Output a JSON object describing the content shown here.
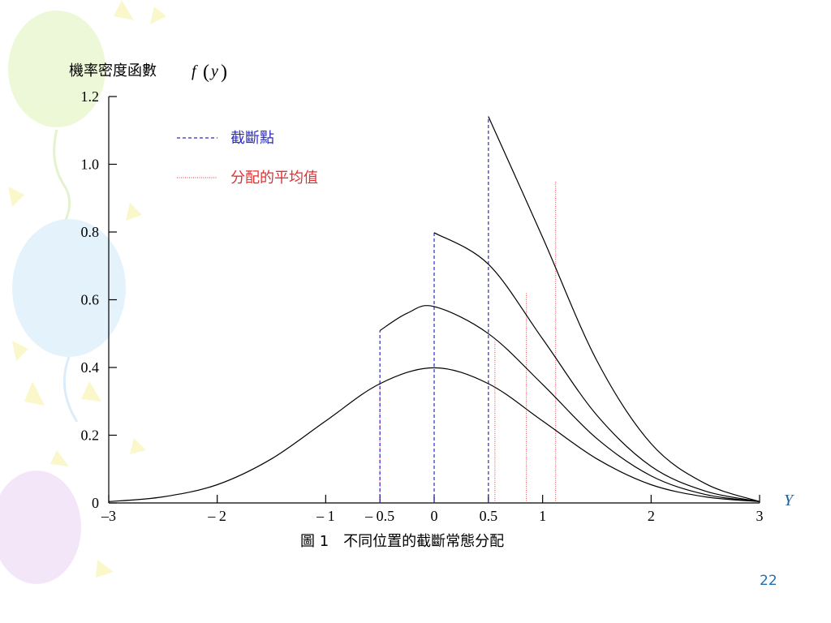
{
  "slide": {
    "page_number": "22",
    "caption": "圖 1　不同位置的截斷常態分配"
  },
  "chart_data": {
    "type": "line",
    "ylabel": "機率密度函數",
    "ylabel_formula": {
      "f": "f",
      "y": "y"
    },
    "xlabel": "Y",
    "xlim": [
      -3,
      3
    ],
    "ylim": [
      0,
      1.2
    ],
    "x_ticks": [
      {
        "value": -3,
        "label": "–3"
      },
      {
        "value": -2,
        "label": "– 2"
      },
      {
        "value": -1,
        "label": "– 1"
      },
      {
        "value": -0.5,
        "label": "– 0.5"
      },
      {
        "value": 0,
        "label": "0"
      },
      {
        "value": 0.5,
        "label": "0.5"
      },
      {
        "value": 1,
        "label": "1"
      },
      {
        "value": 2,
        "label": "2"
      },
      {
        "value": 3,
        "label": "3"
      }
    ],
    "y_ticks": [
      {
        "value": 0,
        "label": "0"
      },
      {
        "value": 0.2,
        "label": "0.2"
      },
      {
        "value": 0.4,
        "label": "0.4"
      },
      {
        "value": 0.6,
        "label": "0.6"
      },
      {
        "value": 0.8,
        "label": "0.8"
      },
      {
        "value": 1.0,
        "label": "1.0"
      },
      {
        "value": 1.2,
        "label": "1.2"
      }
    ],
    "legend": {
      "position": "top-left",
      "entries": [
        {
          "label": "截斷點",
          "color": "#2b2bc8",
          "style": "dashed"
        },
        {
          "label": "分配的平均值",
          "color": "#e03030",
          "style": "dotted"
        }
      ]
    },
    "series": [
      {
        "truncation": -3,
        "color": "#000000",
        "x": [
          -3,
          -2.5,
          -2,
          -1.5,
          -1,
          -0.5,
          0,
          0.5,
          1,
          1.5,
          2,
          2.5,
          3
        ],
        "y": [
          0.004,
          0.018,
          0.054,
          0.13,
          0.242,
          0.352,
          0.399,
          0.352,
          0.242,
          0.13,
          0.054,
          0.018,
          0.004
        ]
      },
      {
        "truncation": -0.5,
        "color": "#000000",
        "x": [
          -0.5,
          -0.25,
          0,
          0.5,
          1,
          1.5,
          2,
          2.5,
          3
        ],
        "y": [
          0.509,
          0.56,
          0.58,
          0.5,
          0.35,
          0.19,
          0.08,
          0.025,
          0.004
        ]
      },
      {
        "truncation": 0,
        "color": "#000000",
        "x": [
          0,
          0.5,
          1,
          1.5,
          2,
          2.5,
          3
        ],
        "y": [
          0.798,
          0.705,
          0.484,
          0.259,
          0.108,
          0.035,
          0.004
        ]
      },
      {
        "truncation": 0.5,
        "color": "#000000",
        "x": [
          0.5,
          1,
          1.5,
          2,
          2.5,
          3
        ],
        "y": [
          1.141,
          0.784,
          0.42,
          0.175,
          0.057,
          0.004
        ]
      }
    ],
    "truncation_lines": [
      {
        "x": -0.5,
        "y_top": 0.509
      },
      {
        "x": 0,
        "y_top": 0.798
      },
      {
        "x": 0.5,
        "y_top": 1.141
      }
    ],
    "mean_lines": [
      {
        "x": -0.5,
        "y_top": 0.35
      },
      {
        "x": 0.56,
        "y_top": 0.48
      },
      {
        "x": 0.85,
        "y_top": 0.62
      },
      {
        "x": 1.12,
        "y_top": 0.95
      }
    ]
  }
}
